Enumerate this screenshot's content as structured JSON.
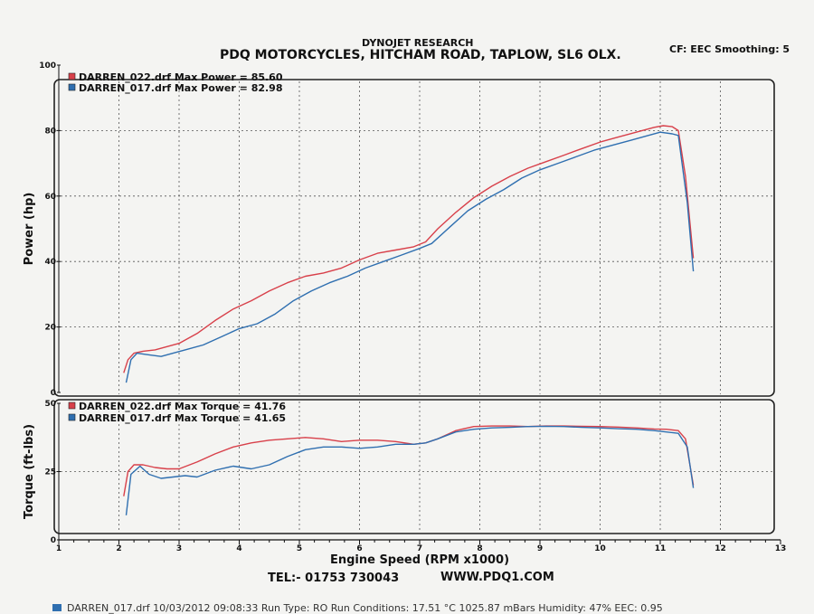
{
  "header": {
    "company": "DYNOJET RESEARCH",
    "shop": "PDQ MOTORCYCLES, HITCHAM ROAD, TAPLOW, SL6 OLX.",
    "settings": "CF: EEC  Smoothing: 5"
  },
  "footer": {
    "tel": "TEL:- 01753 730043",
    "web": "WWW.PDQ1.COM",
    "cutoff_line": "DARREN_017.drf  10/03/2012 09:08:33   Run Type: RO   Run Conditions: 17.51 °C  1025.87 mBars   Humidity: 47%  EEC: 0.95"
  },
  "colors": {
    "run_022": "#d8404a",
    "run_017": "#2f6fb0"
  },
  "chart_data": [
    {
      "type": "line",
      "title": "",
      "ylabel": "Power (hp)",
      "xlabel": "",
      "xlim": [
        1,
        13
      ],
      "ylim": [
        0,
        100
      ],
      "y_ticks": [
        "0",
        "20",
        "40",
        "60",
        "80",
        "100"
      ],
      "grid": true,
      "legend_position": "top-left",
      "series": [
        {
          "name": "DARREN_022.drf Max Power = 85.60",
          "color_key": "run_022",
          "x": [
            2.08,
            2.15,
            2.25,
            2.4,
            2.6,
            2.8,
            3.0,
            3.3,
            3.6,
            3.9,
            4.2,
            4.5,
            4.8,
            5.1,
            5.4,
            5.7,
            6.0,
            6.3,
            6.6,
            6.9,
            7.1,
            7.3,
            7.6,
            7.9,
            8.2,
            8.5,
            8.8,
            9.1,
            9.4,
            9.7,
            10.0,
            10.3,
            10.6,
            10.9,
            11.05,
            11.2,
            11.3,
            11.42,
            11.55
          ],
          "y": [
            6,
            10,
            12,
            12.6,
            13,
            14,
            15,
            18,
            22,
            25.5,
            28,
            31,
            33.5,
            35.5,
            36.5,
            38,
            40.5,
            42.5,
            43.5,
            44.5,
            46,
            50,
            55,
            59.5,
            63,
            66,
            68.5,
            70.5,
            72.5,
            74.5,
            76.5,
            78,
            79.5,
            81,
            81.5,
            81.2,
            80,
            66,
            41
          ]
        },
        {
          "name": "DARREN_017.drf Max Power = 82.98",
          "color_key": "run_017",
          "x": [
            2.12,
            2.2,
            2.3,
            2.5,
            2.7,
            2.9,
            3.1,
            3.4,
            3.7,
            4.0,
            4.3,
            4.6,
            4.9,
            5.2,
            5.5,
            5.8,
            6.1,
            6.4,
            6.7,
            7.0,
            7.2,
            7.5,
            7.8,
            8.1,
            8.4,
            8.7,
            9.0,
            9.3,
            9.6,
            9.9,
            10.2,
            10.5,
            10.8,
            11.0,
            11.2,
            11.3,
            11.45,
            11.55
          ],
          "y": [
            3,
            10,
            12,
            11.5,
            11,
            12,
            13,
            14.5,
            17,
            19.5,
            21,
            24,
            28,
            31,
            33.5,
            35.5,
            38,
            40,
            42,
            44,
            45.5,
            50.5,
            55.5,
            59,
            62,
            65.5,
            68,
            70,
            72,
            74,
            75.5,
            77,
            78.5,
            79.5,
            79,
            78.5,
            58,
            37
          ]
        }
      ]
    },
    {
      "type": "line",
      "title": "",
      "ylabel": "Torque (ft-lbs)",
      "xlabel": "Engine Speed (RPM x1000)",
      "xlim": [
        1,
        13
      ],
      "ylim": [
        0,
        50
      ],
      "x_ticks": [
        "1",
        "2",
        "3",
        "4",
        "5",
        "6",
        "7",
        "8",
        "9",
        "10",
        "11",
        "12",
        "13"
      ],
      "y_ticks": [
        "0",
        "25",
        "50"
      ],
      "grid": true,
      "legend_position": "top-left",
      "series": [
        {
          "name": "DARREN_022.drf Max Torque = 41.76",
          "color_key": "run_022",
          "x": [
            2.08,
            2.15,
            2.25,
            2.4,
            2.6,
            2.8,
            3.0,
            3.3,
            3.6,
            3.9,
            4.2,
            4.5,
            4.8,
            5.1,
            5.4,
            5.7,
            6.0,
            6.3,
            6.6,
            6.9,
            7.1,
            7.3,
            7.6,
            7.9,
            8.2,
            8.5,
            8.8,
            9.1,
            9.4,
            9.7,
            10.0,
            10.3,
            10.6,
            10.9,
            11.1,
            11.3,
            11.42,
            11.55
          ],
          "y": [
            16,
            25,
            27.5,
            27.5,
            26.5,
            26,
            26,
            28.5,
            31.5,
            34,
            35.5,
            36.5,
            37,
            37.5,
            37,
            36,
            36.5,
            36.5,
            36,
            35,
            35.5,
            37,
            40,
            41.5,
            41.7,
            41.7,
            41.5,
            41.7,
            41.7,
            41.6,
            41.5,
            41.3,
            41,
            40.6,
            40.5,
            40,
            37,
            20
          ]
        },
        {
          "name": "DARREN_017.drf Max Torque = 41.65",
          "color_key": "run_017",
          "x": [
            2.12,
            2.2,
            2.35,
            2.5,
            2.7,
            2.9,
            3.1,
            3.3,
            3.6,
            3.9,
            4.2,
            4.5,
            4.8,
            5.1,
            5.4,
            5.7,
            6.0,
            6.3,
            6.6,
            6.9,
            7.1,
            7.3,
            7.6,
            7.9,
            8.2,
            8.5,
            8.8,
            9.1,
            9.4,
            9.7,
            10.0,
            10.3,
            10.6,
            10.9,
            11.1,
            11.3,
            11.45,
            11.55
          ],
          "y": [
            9,
            24,
            27,
            24,
            22.5,
            23,
            23.5,
            23,
            25.5,
            27,
            26,
            27.5,
            30.5,
            33,
            34,
            34,
            33.5,
            34,
            35,
            35,
            35.5,
            37,
            39.5,
            40.5,
            41,
            41.2,
            41.5,
            41.6,
            41.5,
            41.2,
            41,
            40.7,
            40.5,
            40,
            39.5,
            39,
            34,
            19
          ]
        }
      ]
    }
  ]
}
